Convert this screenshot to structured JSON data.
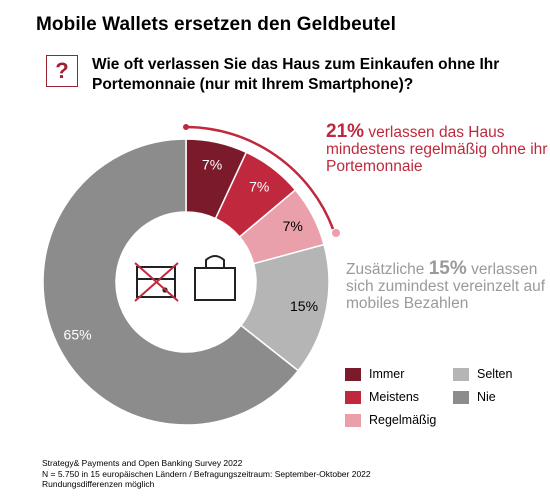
{
  "header": {
    "title": "Mobile Wallets ersetzen den Geldbeutel",
    "question_icon": "?",
    "question": "Wie oft verlassen Sie das Haus zum Einkaufen ohne Ihr Portemonnaie (nur mit Ihrem Smartphone)?"
  },
  "chart_data": {
    "type": "pie",
    "categories": [
      "Immer",
      "Meistens",
      "Regelmäßig",
      "Selten",
      "Nie"
    ],
    "values": [
      7,
      7,
      7,
      15,
      65
    ],
    "labels": [
      "7%",
      "7%",
      "7%",
      "15%",
      "65%"
    ],
    "colors": [
      "#7a1a2b",
      "#c0283d",
      "#e9a0aa",
      "#b5b5b5",
      "#8c8c8c"
    ],
    "donut": true,
    "legend_position": "bottom-right"
  },
  "callouts": {
    "red": {
      "big": "21%",
      "text": "verlassen das Haus mindestens regelmäßig ohne ihr Portemonnaie"
    },
    "grey": {
      "prefix": "Zusätzliche",
      "big": "15%",
      "text": "verlassen sich zumindest vereinzelt auf mobiles Bezahlen"
    }
  },
  "icons": {
    "center_left": "crossed-wallet-icon",
    "center_right": "shopping-bag-icon"
  },
  "legend": [
    {
      "label": "Immer",
      "color": "#7a1a2b"
    },
    {
      "label": "Meistens",
      "color": "#c0283d"
    },
    {
      "label": "Regelmäßig",
      "color": "#e9a0aa"
    },
    {
      "label": "Selten",
      "color": "#b5b5b5"
    },
    {
      "label": "Nie",
      "color": "#8c8c8c"
    }
  ],
  "footer": {
    "line1": "Strategy& Payments and Open Banking Survey 2022",
    "line2": "N = 5.750 in 15 europäischen Ländern / Befragungszeitraum: September-Oktober 2022",
    "line3": "Rundungsdifferenzen möglich"
  }
}
